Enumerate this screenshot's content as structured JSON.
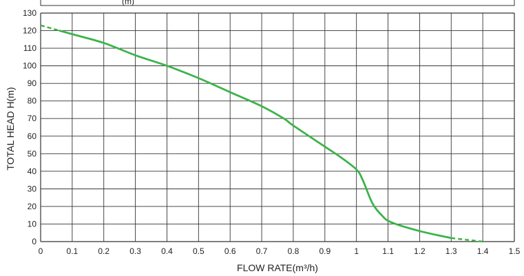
{
  "chart_data": {
    "type": "line",
    "xlabel": "FLOW RATE(m³/h)",
    "ylabel": "TOTAL HEAD H(m)",
    "xlim": [
      0,
      1.5
    ],
    "ylim": [
      0,
      130
    ],
    "x_ticks": [
      "0",
      "0.1",
      "0.2",
      "0.3",
      "0.4",
      "0.5",
      "0.6",
      "0.7",
      "0.8",
      "0.9",
      "1",
      "1.1",
      "1.2",
      "1.3",
      "1.4",
      "1.5"
    ],
    "y_ticks": [
      "0",
      "10",
      "20",
      "30",
      "40",
      "50",
      "60",
      "70",
      "80",
      "90",
      "100",
      "110",
      "120",
      "130"
    ],
    "grid": true,
    "top_strip_partial_text": "(m)",
    "series": [
      {
        "color": "#3cb34a",
        "dashed_start": [
          {
            "x": 0.0,
            "y": 123
          },
          {
            "x": 0.06,
            "y": 120
          }
        ],
        "solid": [
          {
            "x": 0.06,
            "y": 120
          },
          {
            "x": 0.1,
            "y": 118
          },
          {
            "x": 0.2,
            "y": 113
          },
          {
            "x": 0.3,
            "y": 106
          },
          {
            "x": 0.4,
            "y": 100
          },
          {
            "x": 0.5,
            "y": 93
          },
          {
            "x": 0.6,
            "y": 85
          },
          {
            "x": 0.7,
            "y": 77
          },
          {
            "x": 0.77,
            "y": 70
          },
          {
            "x": 0.8,
            "y": 66
          },
          {
            "x": 0.9,
            "y": 54
          },
          {
            "x": 0.95,
            "y": 48
          },
          {
            "x": 1.0,
            "y": 41
          },
          {
            "x": 1.02,
            "y": 35
          },
          {
            "x": 1.05,
            "y": 22
          },
          {
            "x": 1.08,
            "y": 15
          },
          {
            "x": 1.11,
            "y": 11
          },
          {
            "x": 1.2,
            "y": 6
          },
          {
            "x": 1.3,
            "y": 2
          }
        ],
        "dashed_end": [
          {
            "x": 1.3,
            "y": 2
          },
          {
            "x": 1.35,
            "y": 1
          },
          {
            "x": 1.4,
            "y": 0
          }
        ]
      }
    ]
  }
}
